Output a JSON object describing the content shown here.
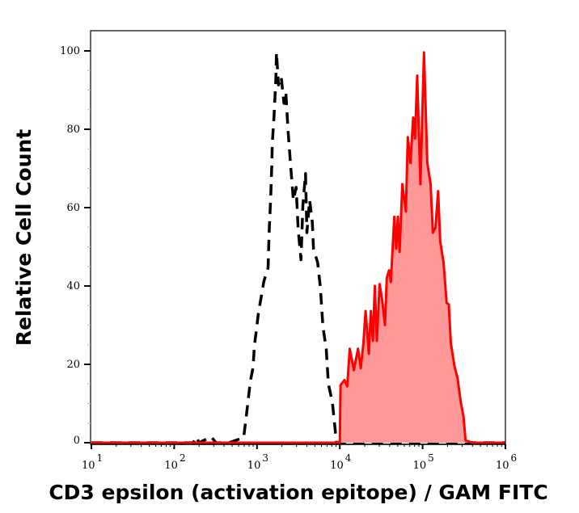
{
  "chart_data": {
    "type": "area",
    "title": "",
    "xlabel": "CD3 epsilon (activation epitope) / GAM FITC",
    "ylabel": "Relative Cell Count",
    "xscale": "log",
    "xlim": [
      10,
      1000000
    ],
    "ylim": [
      0,
      105
    ],
    "x_ticks": [
      {
        "base": "10",
        "exp": "1",
        "value": 10
      },
      {
        "base": "10",
        "exp": "2",
        "value": 100
      },
      {
        "base": "10",
        "exp": "3",
        "value": 1000
      },
      {
        "base": "10",
        "exp": "4",
        "value": 10000
      },
      {
        "base": "10",
        "exp": "5",
        "value": 100000
      },
      {
        "base": "10",
        "exp": "6",
        "value": 1000000
      }
    ],
    "y_ticks": [
      "0",
      "20",
      "40",
      "60",
      "80",
      "100"
    ],
    "grid": false,
    "series": [
      {
        "style": "dashed-line",
        "color": "#000000",
        "points": [
          [
            10,
            0
          ],
          [
            100,
            0
          ],
          [
            170,
            0
          ],
          [
            185,
            1.5
          ],
          [
            200,
            0
          ],
          [
            280,
            1.5
          ],
          [
            320,
            0
          ],
          [
            457,
            0
          ],
          [
            690,
            1.3
          ],
          [
            743,
            6.8
          ],
          [
            832,
            15.7
          ],
          [
            896,
            19.2
          ],
          [
            931,
            24.7
          ],
          [
            1040,
            33
          ],
          [
            1210,
            41.2
          ],
          [
            1360,
            44.6
          ],
          [
            1400,
            53.6
          ],
          [
            1460,
            61.9
          ],
          [
            1510,
            70.7
          ],
          [
            1530,
            76.3
          ],
          [
            1610,
            83.8
          ],
          [
            1690,
            92.8
          ],
          [
            1720,
            99.6
          ],
          [
            1820,
            91.3
          ],
          [
            1960,
            93.4
          ],
          [
            2120,
            86.6
          ],
          [
            2230,
            89.3
          ],
          [
            2370,
            79.7
          ],
          [
            2550,
            70.7
          ],
          [
            2750,
            61.9
          ],
          [
            2970,
            65.2
          ],
          [
            3150,
            54.2
          ],
          [
            3400,
            46.7
          ],
          [
            3580,
            60.4
          ],
          [
            3850,
            68.7
          ],
          [
            4000,
            53.6
          ],
          [
            4320,
            61.9
          ],
          [
            4660,
            56.3
          ],
          [
            4820,
            49.4
          ],
          [
            5400,
            46
          ],
          [
            5820,
            39.8
          ],
          [
            6270,
            29.5
          ],
          [
            6860,
            24
          ],
          [
            7290,
            15
          ],
          [
            8150,
            10.2
          ],
          [
            9120,
            0
          ],
          [
            1000000,
            0
          ]
        ]
      },
      {
        "style": "filled-line",
        "color": "#ff0000",
        "fill": "#ff9999",
        "points": [
          [
            10,
            0
          ],
          [
            9900,
            0
          ],
          [
            10000,
            0
          ],
          [
            10200,
            14.7
          ],
          [
            11400,
            16
          ],
          [
            12300,
            14.4
          ],
          [
            13200,
            24
          ],
          [
            14800,
            18.5
          ],
          [
            16600,
            24
          ],
          [
            17900,
            19
          ],
          [
            19300,
            25.4
          ],
          [
            20500,
            33.6
          ],
          [
            22400,
            22.7
          ],
          [
            23700,
            33.6
          ],
          [
            25100,
            26
          ],
          [
            26500,
            40
          ],
          [
            28000,
            26
          ],
          [
            30200,
            40.5
          ],
          [
            32500,
            36.4
          ],
          [
            35100,
            30
          ],
          [
            36900,
            42
          ],
          [
            39300,
            44
          ],
          [
            41300,
            41
          ],
          [
            45500,
            57.7
          ],
          [
            48000,
            49.5
          ],
          [
            50200,
            57.7
          ],
          [
            52800,
            48.7
          ],
          [
            56900,
            66
          ],
          [
            62800,
            59
          ],
          [
            66200,
            78
          ],
          [
            71300,
            71.4
          ],
          [
            76900,
            83
          ],
          [
            80900,
            77.6
          ],
          [
            86100,
            93.7
          ],
          [
            94200,
            66
          ],
          [
            104000,
            99.6
          ],
          [
            114000,
            71.4
          ],
          [
            125000,
            66
          ],
          [
            133000,
            53.6
          ],
          [
            143000,
            54.9
          ],
          [
            154000,
            64.2
          ],
          [
            163000,
            51.5
          ],
          [
            179000,
            46
          ],
          [
            195000,
            35.7
          ],
          [
            207000,
            35.3
          ],
          [
            219000,
            25.4
          ],
          [
            242000,
            19.6
          ],
          [
            264000,
            16.5
          ],
          [
            289000,
            10.3
          ],
          [
            311000,
            6.8
          ],
          [
            330000,
            0.6
          ],
          [
            384000,
            0.1
          ],
          [
            446000,
            0
          ],
          [
            1000000,
            0
          ]
        ]
      }
    ]
  }
}
